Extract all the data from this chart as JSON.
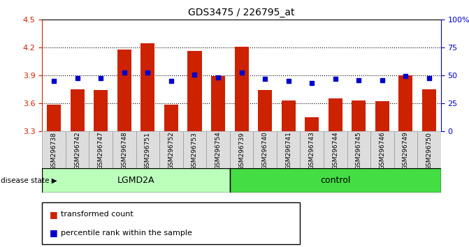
{
  "title": "GDS3475 / 226795_at",
  "categories": [
    "GSM296738",
    "GSM296742",
    "GSM296747",
    "GSM296748",
    "GSM296751",
    "GSM296752",
    "GSM296753",
    "GSM296754",
    "GSM296739",
    "GSM296740",
    "GSM296741",
    "GSM296743",
    "GSM296744",
    "GSM296745",
    "GSM296746",
    "GSM296749",
    "GSM296750"
  ],
  "bar_values": [
    3.58,
    3.75,
    3.74,
    4.18,
    4.25,
    3.58,
    4.16,
    3.89,
    4.21,
    3.74,
    3.63,
    3.45,
    3.65,
    3.63,
    3.62,
    3.9,
    3.75
  ],
  "blue_dot_values": [
    3.84,
    3.87,
    3.87,
    3.93,
    3.93,
    3.84,
    3.91,
    3.88,
    3.93,
    3.86,
    3.84,
    3.82,
    3.86,
    3.85,
    3.85,
    3.89,
    3.87
  ],
  "lgmd2a_count": 8,
  "control_count": 9,
  "ylim_left": [
    3.3,
    4.5
  ],
  "ylim_right": [
    0,
    100
  ],
  "yticks_left": [
    3.3,
    3.6,
    3.9,
    4.2,
    4.5
  ],
  "yticks_right": [
    0,
    25,
    50,
    75,
    100
  ],
  "ytick_labels_right": [
    "0",
    "25",
    "50",
    "75",
    "100%"
  ],
  "bar_color": "#CC2200",
  "dot_color": "#0000CC",
  "lgmd2a_color": "#BBFFBB",
  "control_color": "#44DD44",
  "grid_color": "black",
  "legend_bar_label": "transformed count",
  "legend_dot_label": "percentile rank within the sample",
  "disease_state_label": "disease state",
  "lgmd2a_label": "LGMD2A",
  "control_label": "control"
}
